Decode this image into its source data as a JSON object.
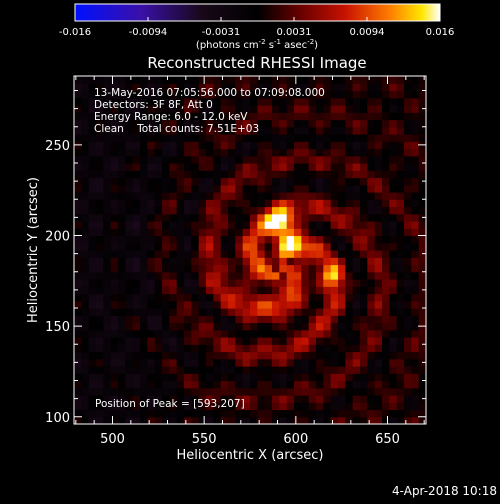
{
  "colorbar": {
    "ticks": [
      "-0.016",
      "-0.0094",
      "-0.0031",
      "0.0031",
      "0.0094",
      "0.016"
    ],
    "unit_text": "(photons cm",
    "unit_sup1": "-2",
    "unit_mid": " s",
    "unit_sup2": "-1",
    "unit_end": " asec",
    "unit_sup3": "-2",
    "unit_close": ")"
  },
  "info": {
    "line1": "13-May-2016 07:05:56.000 to 07:09:08.000",
    "line2": "Detectors: 3F 8F, Att 0",
    "line3": "Energy Range: 6.0 - 12.0 keV",
    "line4": "Clean    Total counts: 7.51E+03",
    "peak": "Position of Peak = [593,207]"
  },
  "footer": {
    "date": "4-Apr-2018 10:18"
  },
  "colors": {
    "background": "#000000",
    "text": "#ffffff"
  },
  "chart_data": {
    "type": "heatmap",
    "title": "Reconstructed RHESSI Image",
    "xlabel": "Heliocentric X (arcsec)",
    "ylabel": "Heliocentric Y (arcsec)",
    "xlim": [
      479,
      671
    ],
    "ylim": [
      96,
      288
    ],
    "xticks": [
      500,
      550,
      600,
      650
    ],
    "yticks": [
      100,
      150,
      200,
      250
    ],
    "colorscale": "RHESSI hot (blue-black-red-yellow-white)",
    "color_range": [
      -0.016,
      0.016
    ],
    "peak_position": [
      593,
      207
    ],
    "grid_cells": [
      48,
      48
    ],
    "sources": [
      {
        "x": 591,
        "y": 207,
        "amp": 0.016,
        "sigma": 5
      },
      {
        "x": 598,
        "y": 197,
        "amp": 0.011,
        "sigma": 4.5
      },
      {
        "x": 620,
        "y": 178,
        "amp": 0.008,
        "sigma": 4
      },
      {
        "x": 590,
        "y": 180,
        "amp": 0.006,
        "sigma": 25
      }
    ]
  }
}
